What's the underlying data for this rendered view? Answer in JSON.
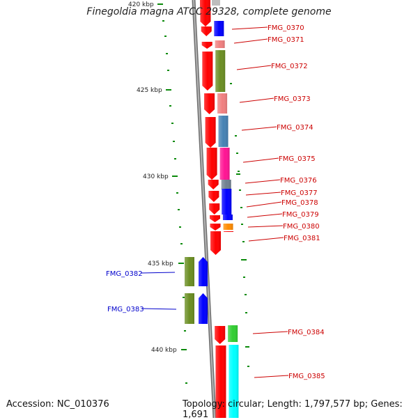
{
  "title": "Finegoldia magna ATCC 29328, complete genome",
  "accession": "Accession: NC_010376",
  "summary": "Topology: circular; Length: 1,797,577 bp; Genes: 1,691",
  "colors": {
    "backbone": "#8c8c8c",
    "cds": "#ff0000",
    "forward_label": "#cc0000",
    "reverse_label": "#0000cc",
    "tick": "#0a8a0a"
  },
  "ticks": [
    {
      "label": "420 kbp"
    },
    {
      "label": "425 kbp"
    },
    {
      "label": "430 kbp"
    },
    {
      "label": "435 kbp"
    },
    {
      "label": "440 kbp"
    }
  ],
  "forward_genes": [
    {
      "name": "FMG_0370",
      "color": "#0000ff"
    },
    {
      "name": "FMG_0371",
      "color": "#f08080"
    },
    {
      "name": "FMG_0372",
      "color": "#6b8e23"
    },
    {
      "name": "FMG_0373",
      "color": "#f08080"
    },
    {
      "name": "FMG_0374",
      "color": "#4682b4"
    },
    {
      "name": "FMG_0375",
      "color": "#ff1493"
    },
    {
      "name": "FMG_0376",
      "color": "#708090"
    },
    {
      "name": "FMG_0377",
      "color": "#0000ff"
    },
    {
      "name": "FMG_0378",
      "color": "#0000ff"
    },
    {
      "name": "FMG_0379",
      "color": "#ff0000"
    },
    {
      "name": "FMG_0380",
      "color": "#ff8c00"
    },
    {
      "name": "FMG_0381",
      "color": "#ff0000"
    },
    {
      "name": "FMG_0384",
      "color": "#32cd32"
    },
    {
      "name": "FMG_0385",
      "color": "#00ffff"
    }
  ],
  "reverse_genes": [
    {
      "name": "FMG_0382",
      "color": "#6b8e23"
    },
    {
      "name": "FMG_0383",
      "color": "#6b8e23"
    }
  ]
}
